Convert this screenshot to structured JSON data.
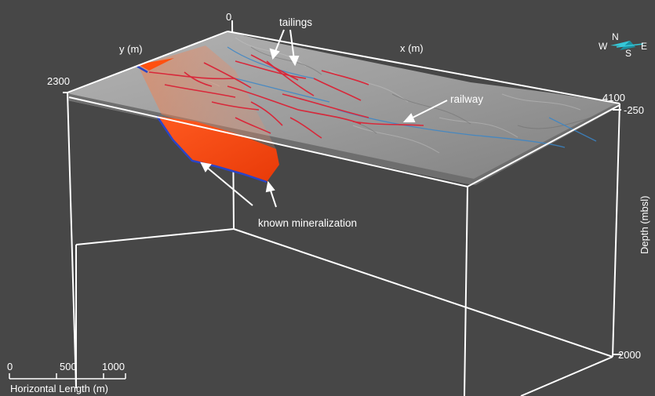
{
  "axes": {
    "x_label": "x (m)",
    "y_label": "y (m)",
    "depth_label": "Depth (mbsl)",
    "origin_tick": "0",
    "y_max_tick": "2300",
    "x_max_tick": "4100",
    "depth_top_tick": "-250",
    "depth_bottom_tick": "2000"
  },
  "annotations": {
    "tailings": "tailings",
    "railway": "railway",
    "mineralization": "known mineralization"
  },
  "compass": {
    "north": "N",
    "south": "S",
    "east": "E",
    "west": "W",
    "colors": {
      "arrow": "#35c8d8",
      "arrow_dark": "#1b8fa0"
    }
  },
  "scale_bar": {
    "ticks": [
      "0",
      "500",
      "1000"
    ],
    "label": "Horizontal Length (m)"
  },
  "colors": {
    "background": "#474747",
    "box_edges": "#ffffff",
    "terrain": "#9a9a9a",
    "ore_body": "#ff4a14",
    "ore_outline": "#2a45c8",
    "tailings_lines": "#d8283a",
    "streams": "#3a86c8"
  }
}
